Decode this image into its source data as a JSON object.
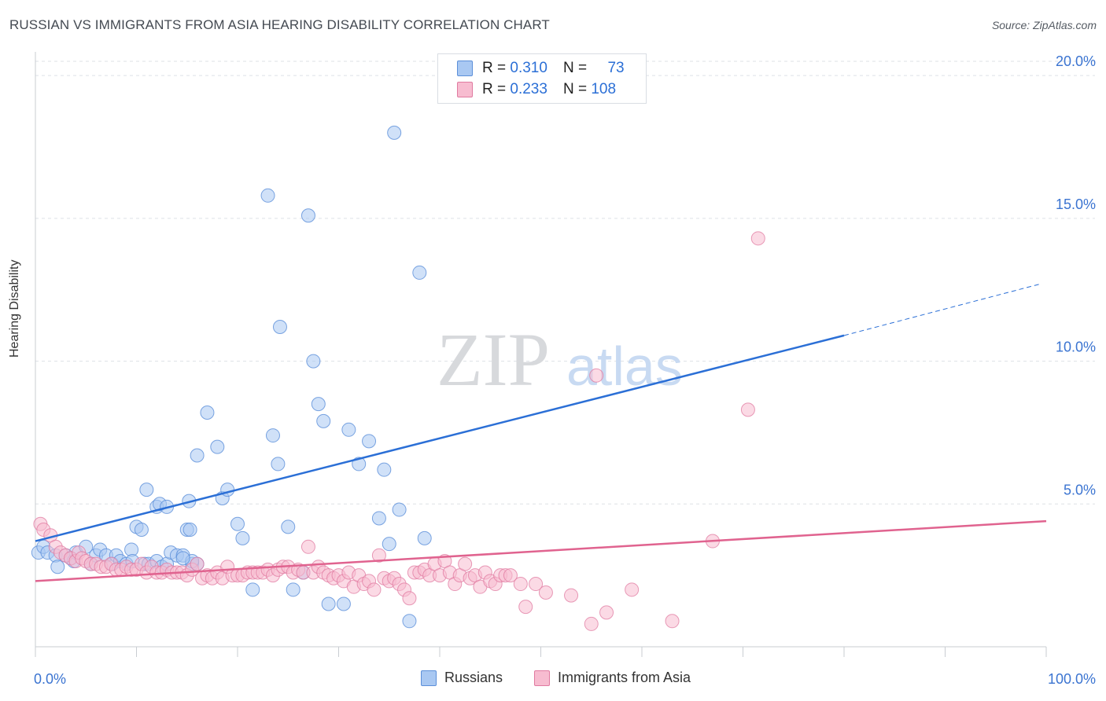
{
  "header": {
    "title": "RUSSIAN VS IMMIGRANTS FROM ASIA HEARING DISABILITY CORRELATION CHART",
    "source": "Source: ZipAtlas.com"
  },
  "legend": {
    "r_label": "R =",
    "n_label": "N =",
    "rows": [
      {
        "r": "0.310",
        "n": "73",
        "color": "#a9c8f2",
        "border": "#5b8fd9"
      },
      {
        "r": "0.233",
        "n": "108",
        "color": "#f7bcd0",
        "border": "#e07aa0"
      }
    ]
  },
  "bottom_legend": {
    "series_a": "Russians",
    "series_b": "Immigrants from Asia"
  },
  "watermark": {
    "zip": "ZIP",
    "atlas": "atlas"
  },
  "colors": {
    "blue_fill": "#a9c8f2",
    "blue_stroke": "#5b8fd9",
    "blue_line": "#2b6fd6",
    "pink_fill": "#f7bcd0",
    "pink_stroke": "#e07aa0",
    "pink_line": "#e0638f",
    "tick_text": "#3b74d1"
  },
  "chart_data": {
    "type": "scatter",
    "title": "RUSSIAN VS IMMIGRANTS FROM ASIA HEARING DISABILITY CORRELATION CHART",
    "xlabel": "",
    "ylabel": "Hearing Disability",
    "xlim": [
      0,
      100
    ],
    "ylim": [
      0,
      20.5
    ],
    "x_tick_labels": [
      "0.0%",
      "100.0%"
    ],
    "y_ticks": [
      5,
      10,
      15,
      20
    ],
    "y_tick_labels": [
      "5.0%",
      "10.0%",
      "15.0%",
      "20.0%"
    ],
    "grid": true,
    "legend_position": "top-center",
    "series": [
      {
        "name": "Russians",
        "r": 0.31,
        "n": 73,
        "trend": {
          "x0": 0,
          "y0": 3.7,
          "x1": 80,
          "y1": 10.9,
          "dashed_to_x": 100,
          "dashed_to_y": 12.7
        },
        "points": [
          [
            0.3,
            3.3
          ],
          [
            0.8,
            3.5
          ],
          [
            1.2,
            3.3
          ],
          [
            2.0,
            3.2
          ],
          [
            2.2,
            2.8
          ],
          [
            3.0,
            3.2
          ],
          [
            3.5,
            3.1
          ],
          [
            3.8,
            3.0
          ],
          [
            4.0,
            3.3
          ],
          [
            5.0,
            3.5
          ],
          [
            5.5,
            2.9
          ],
          [
            6.0,
            3.2
          ],
          [
            6.4,
            3.4
          ],
          [
            7.0,
            3.2
          ],
          [
            7.6,
            2.9
          ],
          [
            8.0,
            3.2
          ],
          [
            8.4,
            3.0
          ],
          [
            9.0,
            2.9
          ],
          [
            9.5,
            3.4
          ],
          [
            9.6,
            3.0
          ],
          [
            10.0,
            4.2
          ],
          [
            10.5,
            4.1
          ],
          [
            10.8,
            2.9
          ],
          [
            11.2,
            2.9
          ],
          [
            12.0,
            3.0
          ],
          [
            12.5,
            2.8
          ],
          [
            13.0,
            2.9
          ],
          [
            13.4,
            3.3
          ],
          [
            14.0,
            3.2
          ],
          [
            14.6,
            3.2
          ],
          [
            15.0,
            4.1
          ],
          [
            15.5,
            2.9
          ],
          [
            16.0,
            2.9
          ],
          [
            11.0,
            5.5
          ],
          [
            12.0,
            4.9
          ],
          [
            12.3,
            5.0
          ],
          [
            13.0,
            4.9
          ],
          [
            15.2,
            5.1
          ],
          [
            15.3,
            4.1
          ],
          [
            15.5,
            3.0
          ],
          [
            14.6,
            3.1
          ],
          [
            16.0,
            6.7
          ],
          [
            17.0,
            8.2
          ],
          [
            18.0,
            7.0
          ],
          [
            18.5,
            5.2
          ],
          [
            19.0,
            5.5
          ],
          [
            20.0,
            4.3
          ],
          [
            20.5,
            3.8
          ],
          [
            21.5,
            2.0
          ],
          [
            23.0,
            15.8
          ],
          [
            23.5,
            7.4
          ],
          [
            24.0,
            6.4
          ],
          [
            24.2,
            11.2
          ],
          [
            25.0,
            4.2
          ],
          [
            25.5,
            2.0
          ],
          [
            26.5,
            2.6
          ],
          [
            27.0,
            15.1
          ],
          [
            27.5,
            10.0
          ],
          [
            28.0,
            8.5
          ],
          [
            28.5,
            7.9
          ],
          [
            29.0,
            1.5
          ],
          [
            30.5,
            1.5
          ],
          [
            31.0,
            7.6
          ],
          [
            32.0,
            6.4
          ],
          [
            33.0,
            7.2
          ],
          [
            34.0,
            4.5
          ],
          [
            34.5,
            6.2
          ],
          [
            35.0,
            3.6
          ],
          [
            35.5,
            18.0
          ],
          [
            36.0,
            4.8
          ],
          [
            37.0,
            0.9
          ],
          [
            38.0,
            13.1
          ],
          [
            38.5,
            3.8
          ]
        ]
      },
      {
        "name": "Immigrants from Asia",
        "r": 0.233,
        "n": 108,
        "trend": {
          "x0": 0,
          "y0": 2.3,
          "x1": 100,
          "y1": 4.4
        },
        "points": [
          [
            0.5,
            4.3
          ],
          [
            0.8,
            4.1
          ],
          [
            1.5,
            3.9
          ],
          [
            2.0,
            3.5
          ],
          [
            2.5,
            3.3
          ],
          [
            3.0,
            3.2
          ],
          [
            3.5,
            3.1
          ],
          [
            4.0,
            3.0
          ],
          [
            4.3,
            3.3
          ],
          [
            4.6,
            3.1
          ],
          [
            5.0,
            3.0
          ],
          [
            5.5,
            2.9
          ],
          [
            6.0,
            2.9
          ],
          [
            6.5,
            2.8
          ],
          [
            7.0,
            2.8
          ],
          [
            7.5,
            2.9
          ],
          [
            8.0,
            2.7
          ],
          [
            8.5,
            2.7
          ],
          [
            9.0,
            2.8
          ],
          [
            9.5,
            2.7
          ],
          [
            10.0,
            2.7
          ],
          [
            10.5,
            2.9
          ],
          [
            11.0,
            2.6
          ],
          [
            11.5,
            2.8
          ],
          [
            12.0,
            2.6
          ],
          [
            12.5,
            2.6
          ],
          [
            13.0,
            2.7
          ],
          [
            13.5,
            2.6
          ],
          [
            14.0,
            2.6
          ],
          [
            14.5,
            2.6
          ],
          [
            15.0,
            2.5
          ],
          [
            15.5,
            2.7
          ],
          [
            16.0,
            2.9
          ],
          [
            16.5,
            2.4
          ],
          [
            17.0,
            2.5
          ],
          [
            17.5,
            2.4
          ],
          [
            18.0,
            2.6
          ],
          [
            18.5,
            2.4
          ],
          [
            19.0,
            2.8
          ],
          [
            19.5,
            2.5
          ],
          [
            20.0,
            2.5
          ],
          [
            20.5,
            2.5
          ],
          [
            21.0,
            2.6
          ],
          [
            21.5,
            2.6
          ],
          [
            22.0,
            2.6
          ],
          [
            22.5,
            2.6
          ],
          [
            23.0,
            2.7
          ],
          [
            23.5,
            2.5
          ],
          [
            24.0,
            2.7
          ],
          [
            24.5,
            2.8
          ],
          [
            25.0,
            2.8
          ],
          [
            25.5,
            2.6
          ],
          [
            26.0,
            2.7
          ],
          [
            26.5,
            2.6
          ],
          [
            27.0,
            3.5
          ],
          [
            27.5,
            2.6
          ],
          [
            28.0,
            2.8
          ],
          [
            28.5,
            2.6
          ],
          [
            29.0,
            2.5
          ],
          [
            29.5,
            2.4
          ],
          [
            30.0,
            2.5
          ],
          [
            30.5,
            2.3
          ],
          [
            31.0,
            2.6
          ],
          [
            31.5,
            2.1
          ],
          [
            32.0,
            2.5
          ],
          [
            32.5,
            2.2
          ],
          [
            33.0,
            2.3
          ],
          [
            33.5,
            2.0
          ],
          [
            34.0,
            3.2
          ],
          [
            34.5,
            2.4
          ],
          [
            35.0,
            2.3
          ],
          [
            35.5,
            2.4
          ],
          [
            36.0,
            2.2
          ],
          [
            36.5,
            2.0
          ],
          [
            37.0,
            1.7
          ],
          [
            37.5,
            2.6
          ],
          [
            38.0,
            2.6
          ],
          [
            38.5,
            2.7
          ],
          [
            39.0,
            2.5
          ],
          [
            39.5,
            2.9
          ],
          [
            40.0,
            2.5
          ],
          [
            40.5,
            3.0
          ],
          [
            41.0,
            2.6
          ],
          [
            41.5,
            2.2
          ],
          [
            42.0,
            2.5
          ],
          [
            42.5,
            2.9
          ],
          [
            43.0,
            2.4
          ],
          [
            43.5,
            2.5
          ],
          [
            44.0,
            2.1
          ],
          [
            44.5,
            2.6
          ],
          [
            45.0,
            2.3
          ],
          [
            45.5,
            2.2
          ],
          [
            46.0,
            2.5
          ],
          [
            46.5,
            2.5
          ],
          [
            47.0,
            2.5
          ],
          [
            48.0,
            2.2
          ],
          [
            48.5,
            1.4
          ],
          [
            49.5,
            2.2
          ],
          [
            50.5,
            1.9
          ],
          [
            53.0,
            1.8
          ],
          [
            55.0,
            0.8
          ],
          [
            55.5,
            9.5
          ],
          [
            56.5,
            1.2
          ],
          [
            59.0,
            2.0
          ],
          [
            63.0,
            0.9
          ],
          [
            67.0,
            3.7
          ],
          [
            70.5,
            8.3
          ],
          [
            71.5,
            14.3
          ]
        ]
      }
    ]
  }
}
